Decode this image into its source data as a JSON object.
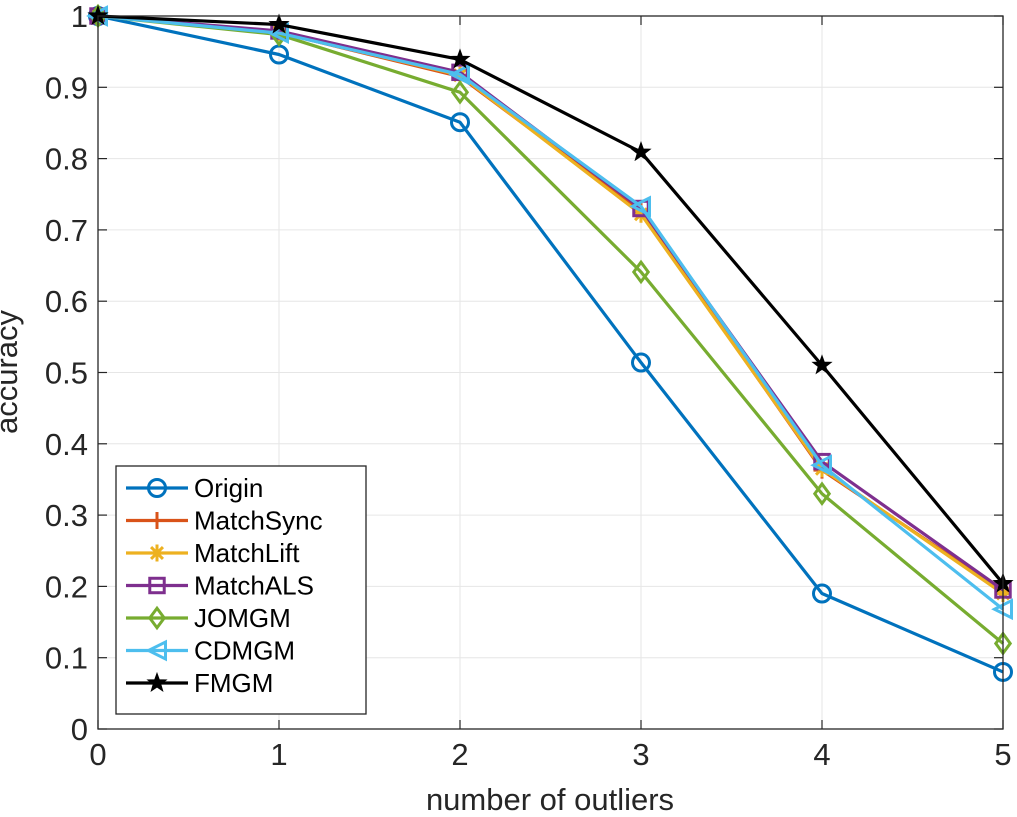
{
  "chart_data": {
    "type": "line",
    "title": "",
    "xlabel": "number of outliers",
    "ylabel": "accuracy",
    "x": [
      0,
      1,
      2,
      3,
      4,
      5
    ],
    "xlim": [
      0,
      5
    ],
    "ylim": [
      0,
      1
    ],
    "xticks": [
      0,
      1,
      2,
      3,
      4,
      5
    ],
    "yticks": [
      0,
      0.1,
      0.2,
      0.3,
      0.4,
      0.5,
      0.6,
      0.7,
      0.8,
      0.9,
      1
    ],
    "xtick_labels": [
      "0",
      "1",
      "2",
      "3",
      "4",
      "5"
    ],
    "ytick_labels": [
      "0",
      "0.1",
      "0.2",
      "0.3",
      "0.4",
      "0.5",
      "0.6",
      "0.7",
      "0.8",
      "0.9",
      "1"
    ],
    "grid": true,
    "legend_position": "bottom-left",
    "series": [
      {
        "name": "Origin",
        "color": "#0072BD",
        "marker": "circle",
        "values": [
          1.0,
          0.946,
          0.851,
          0.514,
          0.19,
          0.08
        ]
      },
      {
        "name": "MatchSync",
        "color": "#D95319",
        "marker": "plus",
        "values": [
          1.0,
          0.977,
          0.915,
          0.726,
          0.363,
          0.193
        ]
      },
      {
        "name": "MatchLift",
        "color": "#EDB120",
        "marker": "asterisk",
        "values": [
          1.0,
          0.977,
          0.917,
          0.722,
          0.365,
          0.19
        ]
      },
      {
        "name": "MatchALS",
        "color": "#7E2F8E",
        "marker": "square",
        "values": [
          1.0,
          0.979,
          0.921,
          0.73,
          0.375,
          0.195
        ]
      },
      {
        "name": "JOMGM",
        "color": "#77AC30",
        "marker": "diamond",
        "values": [
          1.0,
          0.974,
          0.893,
          0.641,
          0.33,
          0.12
        ]
      },
      {
        "name": "CDMGM",
        "color": "#4DBEEE",
        "marker": "triangle-left",
        "values": [
          1.0,
          0.976,
          0.918,
          0.733,
          0.37,
          0.168
        ]
      },
      {
        "name": "FMGM",
        "color": "#000000",
        "marker": "pentagram",
        "values": [
          1.0,
          0.988,
          0.939,
          0.809,
          0.51,
          0.204
        ]
      }
    ]
  }
}
